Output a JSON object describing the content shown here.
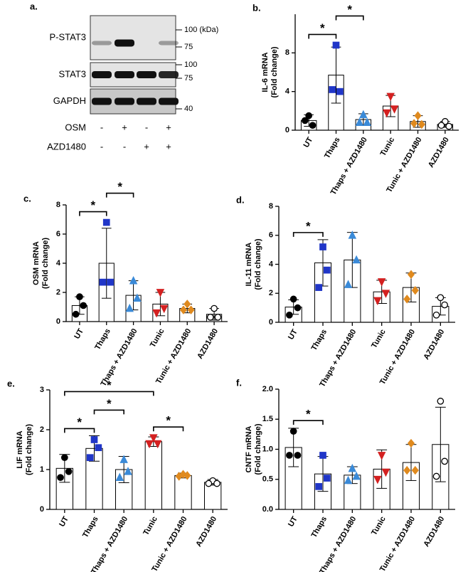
{
  "blot": {
    "panel_label": "a.",
    "rows": [
      {
        "label": "P-STAT3",
        "markers": [
          "100 (kDa)",
          "75"
        ]
      },
      {
        "label": "STAT3",
        "markers": [
          "100",
          "75"
        ]
      },
      {
        "label": "GAPDH",
        "markers": [
          "40"
        ]
      }
    ],
    "treatments": [
      {
        "label": "OSM",
        "signs": [
          "-",
          "+",
          "-",
          "+"
        ]
      },
      {
        "label": "AZD1480",
        "signs": [
          "-",
          "-",
          "+",
          "+"
        ]
      }
    ]
  },
  "chart_data": [
    {
      "type": "bar",
      "panel_label": "b.",
      "y_label": [
        "IL-6 mRNA",
        "(Fold change)"
      ],
      "categories": [
        "UT",
        "Thaps",
        "Thaps + AZD1480",
        "Tunic",
        "Tunic + AZD1480",
        "AZD1480"
      ],
      "values": [
        1.0,
        5.7,
        1.1,
        2.5,
        0.9,
        0.6
      ],
      "errors": [
        0.6,
        2.9,
        0.6,
        1.1,
        0.6,
        0.3
      ],
      "points": [
        [
          1.5,
          0.5,
          1.0
        ],
        [
          8.8,
          4.0,
          4.2
        ],
        [
          1.6,
          0.8,
          0.8
        ],
        [
          3.5,
          2.2,
          1.8
        ],
        [
          1.5,
          0.6,
          0.7
        ],
        [
          0.9,
          0.4,
          0.5
        ]
      ],
      "point_colors": [
        "#000000",
        "#2036c8",
        "#3a8ad8",
        "#d42020",
        "#e08a1e",
        "#000000"
      ],
      "point_markers": [
        "circle",
        "square",
        "triangle",
        "triangle-down",
        "diamond",
        "open-circle"
      ],
      "ylim": [
        0,
        12
      ],
      "yticks": [
        0,
        4,
        8
      ],
      "significance": [
        {
          "between": [
            "UT",
            "Thaps"
          ],
          "label": "*"
        },
        {
          "between": [
            "Thaps",
            "Thaps + AZD1480"
          ],
          "label": "*"
        }
      ]
    },
    {
      "type": "bar",
      "panel_label": "c.",
      "y_label": [
        "OSM mRNA",
        "(Fold change)"
      ],
      "categories": [
        "UT",
        "Thaps",
        "Thaps + AZD1480",
        "Tunic",
        "Tunic + AZD1480",
        "AZD1480"
      ],
      "values": [
        1.1,
        4.0,
        1.8,
        1.2,
        0.9,
        0.5
      ],
      "errors": [
        0.6,
        2.4,
        1.0,
        0.8,
        0.3,
        0.4
      ],
      "points": [
        [
          1.7,
          1.1,
          0.5
        ],
        [
          6.8,
          2.7,
          2.7
        ],
        [
          2.8,
          1.6,
          0.9
        ],
        [
          2.0,
          0.9,
          0.6
        ],
        [
          1.2,
          0.8,
          0.8
        ],
        [
          0.9,
          0.3,
          0.3
        ]
      ],
      "point_colors": [
        "#000000",
        "#2036c8",
        "#3a8ad8",
        "#d42020",
        "#e08a1e",
        "#000000"
      ],
      "point_markers": [
        "circle",
        "square",
        "triangle",
        "triangle-down",
        "diamond",
        "open-circle"
      ],
      "ylim": [
        0,
        8
      ],
      "yticks": [
        0,
        2,
        4,
        6,
        8
      ],
      "significance": [
        {
          "between": [
            "UT",
            "Thaps"
          ],
          "label": "*"
        },
        {
          "between": [
            "Thaps",
            "Thaps + AZD1480"
          ],
          "label": "*"
        }
      ]
    },
    {
      "type": "bar",
      "panel_label": "d.",
      "y_label": [
        "IL-11 mRNA",
        "(Fold change)"
      ],
      "categories": [
        "UT",
        "Thaps",
        "Thaps + AZD1480",
        "Tunic",
        "Tunic + AZD1480",
        "AZD1480"
      ],
      "values": [
        1.05,
        4.1,
        4.3,
        2.1,
        2.4,
        1.1
      ],
      "errors": [
        0.5,
        1.6,
        1.9,
        0.8,
        1.0,
        0.6
      ],
      "points": [
        [
          1.6,
          1.0,
          0.5
        ],
        [
          5.2,
          3.6,
          2.4
        ],
        [
          6.0,
          4.3,
          2.6
        ],
        [
          2.8,
          2.0,
          1.5
        ],
        [
          3.3,
          2.2,
          1.6
        ],
        [
          1.7,
          1.2,
          0.5
        ]
      ],
      "point_colors": [
        "#000000",
        "#2036c8",
        "#3a8ad8",
        "#d42020",
        "#e08a1e",
        "#000000"
      ],
      "point_markers": [
        "circle",
        "square",
        "triangle",
        "triangle-down",
        "diamond",
        "open-circle"
      ],
      "ylim": [
        0,
        8
      ],
      "yticks": [
        0,
        2,
        4,
        6,
        8
      ],
      "significance": [
        {
          "between": [
            "UT",
            "Thaps"
          ],
          "label": "*"
        }
      ]
    },
    {
      "type": "bar",
      "panel_label": "e.",
      "y_label": [
        "LIF mRNA",
        "(Fold change)"
      ],
      "categories": [
        "UT",
        "Thaps",
        "Thaps + AZD1480",
        "Tunic",
        "Tunic + AZD1480",
        "AZD1480"
      ],
      "values": [
        1.03,
        1.53,
        1.0,
        1.7,
        0.85,
        0.68
      ],
      "errors": [
        0.35,
        0.32,
        0.33,
        0.12,
        0.06,
        0.07
      ],
      "points": [
        [
          1.3,
          0.95,
          0.8
        ],
        [
          1.75,
          1.55,
          1.3
        ],
        [
          1.25,
          0.95,
          0.8
        ],
        [
          1.8,
          1.65,
          1.65
        ],
        [
          0.88,
          0.85,
          0.83
        ],
        [
          0.72,
          0.65,
          0.65
        ]
      ],
      "point_colors": [
        "#000000",
        "#2036c8",
        "#3a8ad8",
        "#d42020",
        "#e08a1e",
        "#000000"
      ],
      "point_markers": [
        "circle",
        "square",
        "triangle",
        "triangle-down",
        "diamond",
        "open-circle"
      ],
      "ylim": [
        0,
        3
      ],
      "yticks": [
        0,
        1,
        2,
        3
      ],
      "significance": [
        {
          "between": [
            "UT",
            "Thaps"
          ],
          "label": "*"
        },
        {
          "between": [
            "Thaps",
            "Thaps + AZD1480"
          ],
          "label": "*"
        },
        {
          "between": [
            "Tunic",
            "Tunic + AZD1480"
          ],
          "label": "*"
        },
        {
          "between": [
            "UT",
            "Tunic"
          ],
          "label": "*"
        }
      ]
    },
    {
      "type": "bar",
      "panel_label": "f.",
      "y_label": [
        "CNTF mRNA",
        "(Fold change)"
      ],
      "categories": [
        "UT",
        "Thaps",
        "Thaps + AZD1480",
        "Tunic",
        "Tunic + AZD1480",
        "AZD1480"
      ],
      "values": [
        1.03,
        0.59,
        0.57,
        0.67,
        0.78,
        1.08
      ],
      "errors": [
        0.32,
        0.29,
        0.14,
        0.32,
        0.3,
        0.62
      ],
      "points": [
        [
          1.3,
          0.9,
          0.9
        ],
        [
          0.9,
          0.52,
          0.38
        ],
        [
          0.68,
          0.55,
          0.48
        ],
        [
          0.9,
          0.62,
          0.5
        ],
        [
          1.1,
          0.65,
          0.65
        ],
        [
          1.8,
          0.8,
          0.55
        ]
      ],
      "point_colors": [
        "#000000",
        "#2036c8",
        "#3a8ad8",
        "#d42020",
        "#e08a1e",
        "#000000"
      ],
      "point_markers": [
        "circle",
        "square",
        "triangle",
        "triangle-down",
        "diamond",
        "open-circle"
      ],
      "ylim": [
        0,
        2
      ],
      "yticks": [
        {
          "value": 0,
          "label": "0.0"
        },
        0.5,
        {
          "value": 1,
          "label": "1.0"
        },
        1.5,
        {
          "value": 2,
          "label": "2.0"
        }
      ],
      "significance": [
        {
          "between": [
            "UT",
            "Thaps"
          ],
          "label": "*"
        }
      ]
    }
  ]
}
